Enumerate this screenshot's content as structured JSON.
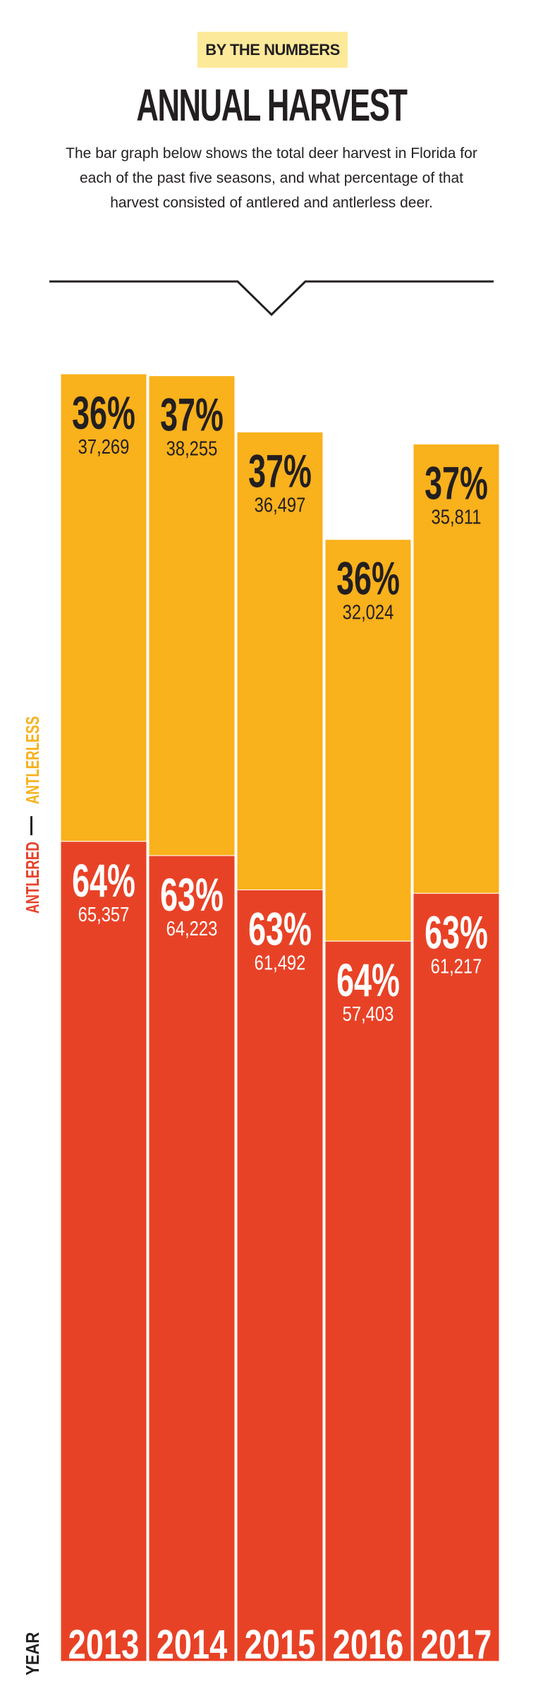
{
  "header": {
    "badge": "BY THE NUMBERS",
    "title": "ANNUAL HARVEST",
    "description": "The bar graph below shows the total deer harvest in Florida for each of the past five seasons, and what percentage of that harvest consisted of antlered and antlerless deer."
  },
  "legend": {
    "antlerless": "ANTLERLESS",
    "antlered": "ANTLERED"
  },
  "axis": {
    "x_label": "YEAR"
  },
  "colors": {
    "antlerless": "#f9b11c",
    "antlered": "#e84226",
    "text_dark": "#231f20",
    "text_light": "#ffffff",
    "badge_bg": "#fde99a"
  },
  "chart_data": {
    "type": "bar",
    "stacked": true,
    "categories": [
      "2013",
      "2014",
      "2015",
      "2016",
      "2017"
    ],
    "series": [
      {
        "name": "ANTLERED",
        "values": [
          65357,
          64223,
          61492,
          57403,
          61217
        ],
        "percent_labels": [
          "64%",
          "63%",
          "63%",
          "64%",
          "63%"
        ],
        "value_labels": [
          "65,357",
          "64,223",
          "61,492",
          "57,403",
          "61,217"
        ]
      },
      {
        "name": "ANTLERLESS",
        "values": [
          37269,
          38255,
          36497,
          32024,
          35811
        ],
        "percent_labels": [
          "36%",
          "37%",
          "37%",
          "36%",
          "37%"
        ],
        "value_labels": [
          "37,269",
          "38,255",
          "36,497",
          "32,024",
          "35,811"
        ]
      }
    ],
    "xlabel": "YEAR",
    "ylabel": "",
    "ylim": [
      0,
      102626
    ],
    "grid": false,
    "legend": "left-vertical"
  }
}
